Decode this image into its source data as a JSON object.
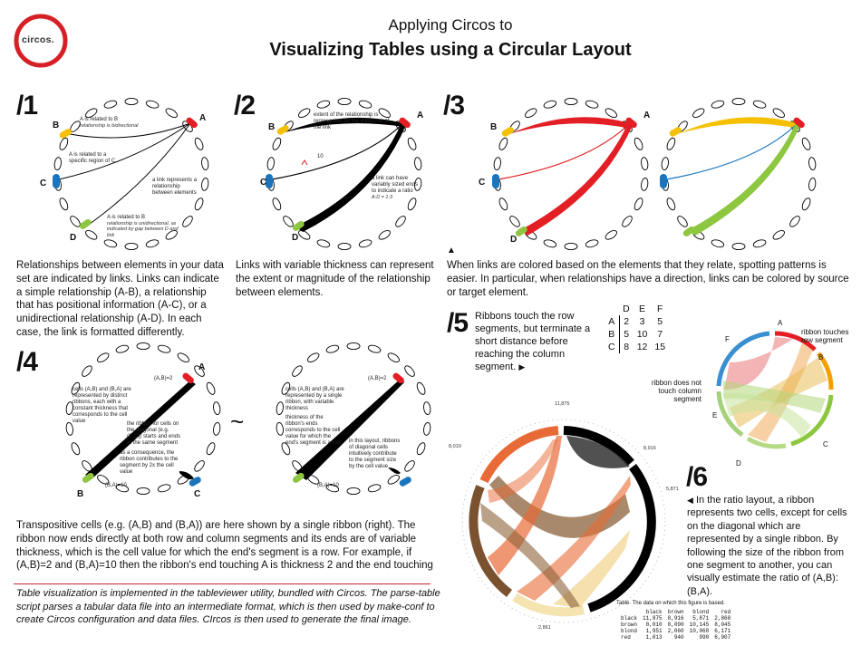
{
  "header": {
    "logo_text": "circos.",
    "title_line1": "Applying Circos to",
    "title_line2": "Visualizing Tables using a Circular Layout"
  },
  "panel1": {
    "number": "/1",
    "label_A": "A",
    "label_B": "B",
    "label_C": "C",
    "label_D": "D",
    "ann_AB": "A is related to B",
    "ann_AB_sub": "relationship is bidirectional",
    "ann_AC": "A is related to a specific region of C",
    "ann_link": "a link represents a relationship between elements",
    "ann_AD": "A is related to B",
    "ann_AD_sub": "relationship is unidirectional, as indicated by gap between D and link",
    "caption": "Relationships between elements in your data set are indicated by links. Links can indicate a simple relationship (A-B), a relationship that has positional information (A-C), or a unidirectional relationship (A-D). In each case, the link is formatted differently."
  },
  "panel2": {
    "number": "/2",
    "label_A": "A",
    "label_B": "B",
    "label_C": "C",
    "label_D": "D",
    "ann_extent": "extent of the relationship is represented by the thickness of the link",
    "ann_ten": "10",
    "ann_variable": "a link can have variably sized ends to indicate a ratio",
    "ann_ratio": "A:D = 1:3",
    "caption": "Links with variable thickness can represent the extent or magnitude of the relationship between elements."
  },
  "panel3": {
    "number": "/3",
    "label_A": "A",
    "label_B": "B",
    "label_C": "C",
    "label_D": "D",
    "caption_marker": "▲",
    "caption": "When links are colored based on the elements that they relate, spotting patterns is easier. In particular, when relationships have a direction, links can be colored by source or target element."
  },
  "panel4": {
    "number": "/4",
    "label_A": "A",
    "label_B": "B",
    "label_C": "C",
    "left_ab": "(A,B)=2",
    "left_ba": "(B,A)=10",
    "left_ann1": "cells (A,B) and (B,A) are represented by distinct ribbons, each with a constant thickness that corresponds to the cell value",
    "left_ann2": "the ribbon for cells on the diagonal (e.g. (C,C)) starts and ends at the same segment",
    "left_ann3": "as a consequence, the ribbon contributes to the segment by 2x the cell value",
    "tilde": "~",
    "right_ab": "(A,B)=2",
    "right_ba": "(B,A)=10",
    "right_ann1": "cells (A,B) and (B,A) are represented by a single ribbon, with variable thickness",
    "right_ann2": "thickness of the ribbon's ends corresponds to the cell value for which the end's segment is a row",
    "right_ann3": "in this layout, ribbons of diagonal cells intuitively contribute to the segment size by the cell value",
    "caption": "Transpositive cells (e.g. (A,B) and (B,A)) are here shown by a single ribbon (right). The ribbon now ends directly at both row and column segments and its ends are of variable thickness, which is the cell value for which the end's segment is a row. For example, if (A,B)=2 and (B,A)=10 then the ribbon's end touching A is thickness 2 and the end touching"
  },
  "panel5": {
    "number": "/5",
    "caption": "Ribbons touch the row segments, but terminate a short distance before reaching the column segment.",
    "caption_marker": "▶",
    "table_cols": [
      "D",
      "E",
      "F"
    ],
    "table_rows": [
      {
        "row": "A",
        "cells": [
          "2",
          "3",
          "5"
        ]
      },
      {
        "row": "B",
        "cells": [
          "5",
          "10",
          "7"
        ]
      },
      {
        "row": "C",
        "cells": [
          "8",
          "12",
          "15"
        ]
      }
    ],
    "ann_touch": "ribbon touches row segment",
    "ann_nottouch": "ribbon does not touch column segment",
    "seg_A": "A",
    "seg_B": "B",
    "seg_C": "C",
    "seg_D": "D",
    "seg_E": "E",
    "seg_F": "F"
  },
  "panel6": {
    "number": "/6",
    "caption_marker": "◀",
    "caption": "In the ratio layout, a ribbon represents two cells, except for cells on the diagonal which are represented by a single ribbon. By following the size of the ribbon from one segment to another, you can visually estimate the ratio of (A,B):(B,A).",
    "val_top": "11,875",
    "val_left": "8,010",
    "val_right": "8,916",
    "val_right2": "5,871",
    "val_bottom": "2,861",
    "table_caption": "Table. The data on which this figure is based.",
    "table_header": [
      "",
      "black",
      "brown",
      "blond",
      "red"
    ],
    "table_rows": [
      [
        "black",
        "11,875",
        "8,916",
        "5,871",
        "2,868"
      ],
      [
        "brown",
        "8,010",
        "8,090",
        "10,145",
        "8,045"
      ],
      [
        "blond",
        "1,951",
        "2,060",
        "10,068",
        "6,171"
      ],
      [
        "red",
        "1,013",
        "940",
        "990",
        "6,907"
      ]
    ]
  },
  "footer": {
    "text": "Table visualization is implemented in the tableviewer utility, bundled with Circos. The parse-table script parses a tabular data file into an intermediate format, which is then used by make-conf to create Circos configuration and data files. CIrcos is then used to generate the final image."
  },
  "colors": {
    "red": "#e31e24",
    "yellow": "#f5c000",
    "blue": "#1b75bc",
    "green": "#8dc63f",
    "black": "#000000",
    "logo_red": "#d71f26",
    "rule_red": "#c8202b"
  }
}
